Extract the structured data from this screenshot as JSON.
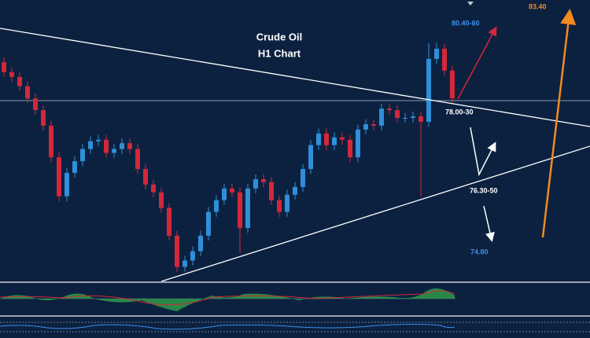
{
  "chart_data": {
    "type": "candlestick",
    "title": "Crude Oil",
    "subtitle": "H1 Chart",
    "ylim": [
      74.45,
      80.18
    ],
    "up_color": "#2f8fd8",
    "down_color": "#d3283a",
    "open": [
      78.9,
      78.7,
      78.6,
      78.41,
      78.16,
      77.92,
      77.6,
      76.95,
      76.15,
      76.63,
      76.87,
      77.12,
      77.28,
      77.31,
      77.04,
      77.12,
      77.24,
      77.12,
      76.71,
      76.39,
      76.23,
      75.91,
      75.34,
      74.7,
      74.83,
      75.02,
      75.34,
      75.83,
      76.07,
      76.31,
      76.23,
      75.5,
      76.31,
      76.5,
      76.44,
      76.07,
      75.83,
      76.18,
      76.34,
      76.71,
      77.2,
      77.44,
      77.2,
      77.36,
      77.31,
      76.95,
      77.52,
      77.63,
      77.6,
      77.95,
      77.92,
      77.76,
      77.76,
      77.79,
      77.68,
      78.97,
      79.18,
      78.73
    ],
    "high": [
      79.0,
      78.8,
      78.7,
      78.51,
      78.26,
      78.02,
      77.7,
      77.05,
      76.73,
      76.97,
      77.22,
      77.38,
      77.41,
      77.41,
      77.22,
      77.34,
      77.34,
      77.22,
      76.81,
      76.49,
      76.33,
      76.01,
      75.44,
      74.93,
      75.12,
      75.44,
      75.93,
      76.17,
      76.41,
      76.41,
      76.33,
      76.41,
      76.6,
      76.6,
      76.54,
      76.17,
      76.28,
      76.44,
      76.81,
      77.3,
      77.54,
      77.54,
      77.46,
      77.46,
      77.41,
      77.62,
      77.73,
      77.73,
      78.05,
      78.05,
      78.02,
      77.86,
      77.89,
      77.89,
      79.29,
      79.3,
      79.28,
      78.83
    ],
    "low": [
      78.6,
      78.5,
      78.31,
      78.06,
      77.82,
      77.5,
      76.85,
      76.05,
      76.05,
      76.53,
      76.77,
      77.02,
      77.18,
      76.94,
      76.94,
      77.02,
      77.02,
      76.61,
      76.29,
      76.13,
      75.81,
      75.24,
      74.6,
      74.6,
      74.73,
      74.92,
      75.24,
      75.73,
      75.97,
      76.13,
      74.98,
      75.4,
      76.21,
      76.34,
      75.97,
      75.73,
      75.73,
      76.08,
      76.24,
      76.61,
      77.1,
      77.1,
      77.1,
      77.21,
      76.85,
      76.85,
      77.42,
      77.5,
      77.5,
      77.82,
      77.66,
      77.66,
      77.66,
      76.15,
      77.58,
      78.87,
      78.63,
      78.06
    ],
    "close": [
      78.7,
      78.6,
      78.41,
      78.16,
      77.92,
      77.6,
      76.95,
      76.15,
      76.63,
      76.87,
      77.12,
      77.28,
      77.31,
      77.04,
      77.12,
      77.24,
      77.12,
      76.71,
      76.39,
      76.23,
      75.91,
      75.34,
      74.7,
      74.83,
      75.02,
      75.34,
      75.83,
      76.07,
      76.31,
      76.23,
      75.5,
      76.31,
      76.5,
      76.44,
      76.07,
      75.83,
      76.18,
      76.34,
      76.71,
      77.2,
      77.44,
      77.2,
      77.36,
      77.31,
      76.95,
      77.52,
      77.63,
      77.6,
      77.95,
      77.92,
      77.76,
      77.76,
      77.79,
      77.68,
      78.97,
      79.18,
      78.73,
      78.16
    ],
    "annotations": [
      {
        "text": "80.40-60",
        "color": "#3d8fe8"
      },
      {
        "text": "83.40",
        "color": "#f28a1e"
      },
      {
        "text": "78.00-30",
        "color": "#ffffff"
      },
      {
        "text": "76.30-50",
        "color": "#ffffff"
      },
      {
        "text": "74.80",
        "color": "#3d8fe8"
      }
    ]
  }
}
